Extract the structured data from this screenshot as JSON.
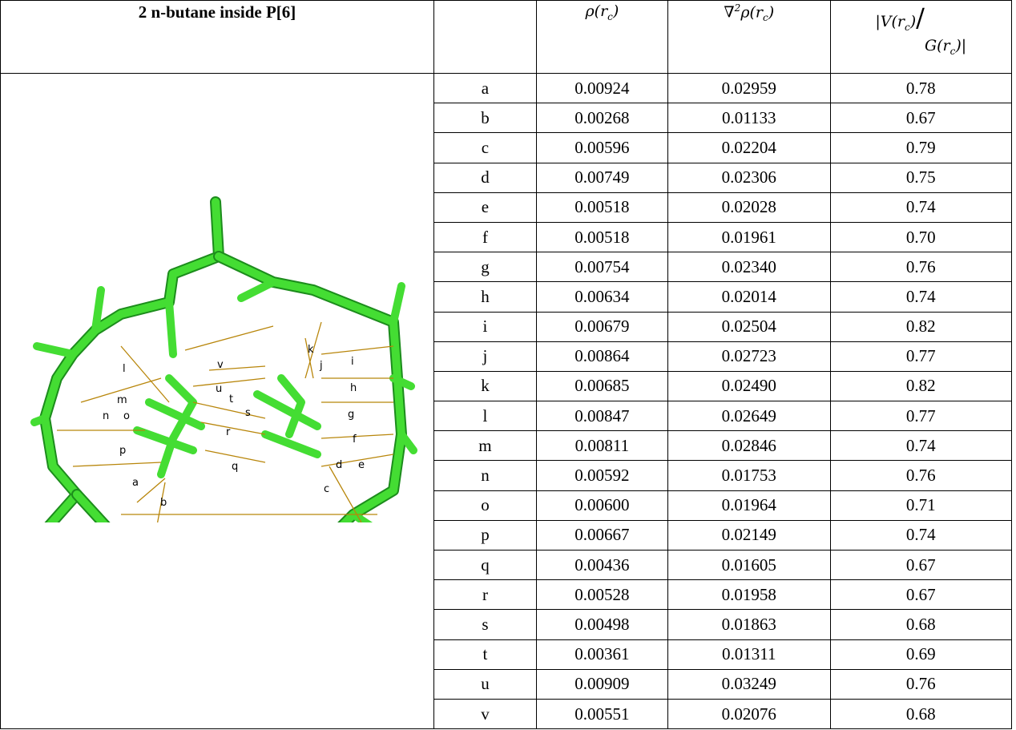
{
  "table": {
    "title": "2 n-butane inside P[6]",
    "columns": [
      [
        {
          "text": "ρ(r"
        },
        {
          "sub": "c"
        },
        {
          "text": ")"
        }
      ],
      [
        {
          "text": "∇"
        },
        {
          "sup": "2"
        },
        {
          "text": "ρ(r"
        },
        {
          "sub": "c"
        },
        {
          "text": ")"
        }
      ],
      [
        {
          "text": "|V(r"
        },
        {
          "sub": "c"
        },
        {
          "text": ")"
        },
        {
          "text": "/"
        },
        {
          "text": "G(r"
        },
        {
          "sub": "c"
        },
        {
          "text": ")|"
        }
      ]
    ],
    "rows": [
      [
        "a",
        "0.00924",
        "0.02959",
        "0.78"
      ],
      [
        "b",
        "0.00268",
        "0.01133",
        "0.67"
      ],
      [
        "c",
        "0.00596",
        "0.02204",
        "0.79"
      ],
      [
        "d",
        "0.00749",
        "0.02306",
        "0.75"
      ],
      [
        "e",
        "0.00518",
        "0.02028",
        "0.74"
      ],
      [
        "f",
        "0.00518",
        "0.01961",
        "0.70"
      ],
      [
        "g",
        "0.00754",
        "0.02340",
        "0.76"
      ],
      [
        "h",
        "0.00634",
        "0.02014",
        "0.74"
      ],
      [
        "i",
        "0.00679",
        "0.02504",
        "0.82"
      ],
      [
        "j",
        "0.00864",
        "0.02723",
        "0.77"
      ],
      [
        "k",
        "0.00685",
        "0.02490",
        "0.82"
      ],
      [
        "l",
        "0.00847",
        "0.02649",
        "0.77"
      ],
      [
        "m",
        "0.00811",
        "0.02846",
        "0.74"
      ],
      [
        "n",
        "0.00592",
        "0.01753",
        "0.76"
      ],
      [
        "o",
        "0.00600",
        "0.01964",
        "0.71"
      ],
      [
        "p",
        "0.00667",
        "0.02149",
        "0.74"
      ],
      [
        "q",
        "0.00436",
        "0.01605",
        "0.67"
      ],
      [
        "r",
        "0.00528",
        "0.01958",
        "0.67"
      ],
      [
        "s",
        "0.00498",
        "0.01863",
        "0.68"
      ],
      [
        "t",
        "0.00361",
        "0.01311",
        "0.69"
      ],
      [
        "u",
        "0.00909",
        "0.03249",
        "0.76"
      ],
      [
        "v",
        "0.00551",
        "0.02076",
        "0.68"
      ]
    ]
  },
  "molecule": {
    "labels": [
      "a",
      "b",
      "c",
      "d",
      "e",
      "f",
      "g",
      "h",
      "i",
      "j",
      "k",
      "l",
      "m",
      "n",
      "o",
      "p",
      "q",
      "r",
      "s",
      "t",
      "u",
      "v"
    ]
  }
}
